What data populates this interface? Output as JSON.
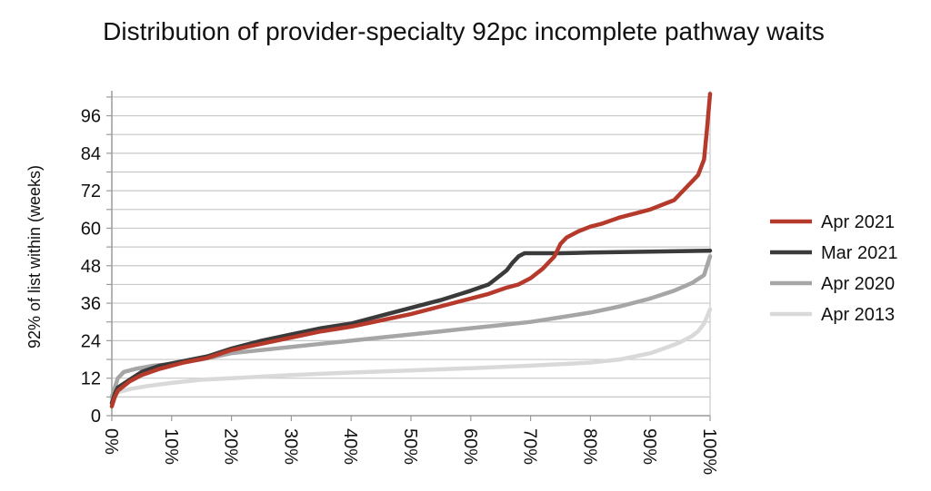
{
  "chart_data": {
    "type": "line",
    "title": "Distribution of provider-specialty 92pc incomplete pathway waits",
    "xlabel": "",
    "ylabel": "92% of list within (weeks)",
    "xlim": [
      0,
      100
    ],
    "ylim": [
      0,
      104
    ],
    "x_ticks": [
      "0%",
      "10%",
      "20%",
      "30%",
      "40%",
      "50%",
      "60%",
      "70%",
      "80%",
      "90%",
      "100%"
    ],
    "y_ticks": [
      0,
      12,
      24,
      36,
      48,
      60,
      72,
      84,
      96
    ],
    "grid": true,
    "legend_position": "right",
    "series": [
      {
        "name": "Apr 2021",
        "color": "#b63a2b",
        "x": [
          0,
          0.5,
          1,
          3,
          5,
          8,
          12,
          16,
          20,
          25,
          30,
          35,
          40,
          45,
          50,
          55,
          60,
          63,
          66,
          68,
          70,
          72,
          74,
          75,
          76,
          78,
          80,
          82,
          85,
          88,
          90,
          92,
          94,
          95,
          96,
          97,
          98,
          99,
          99.5,
          100
        ],
        "y": [
          3,
          6,
          8,
          11,
          13,
          15,
          17,
          18.5,
          21,
          23,
          25,
          27,
          28.5,
          30.5,
          32.5,
          35,
          37.5,
          39,
          41,
          42,
          44,
          47,
          51,
          55,
          57,
          59,
          60.5,
          61.5,
          63.5,
          65,
          66,
          67.5,
          69,
          71,
          73,
          75,
          77,
          82,
          92,
          103
        ]
      },
      {
        "name": "Mar 2021",
        "color": "#3a3a3a",
        "x": [
          0,
          0.5,
          1,
          3,
          5,
          8,
          12,
          16,
          20,
          25,
          30,
          35,
          40,
          45,
          50,
          55,
          60,
          63,
          65,
          66,
          67,
          68,
          69,
          70,
          75,
          80,
          90,
          100
        ],
        "y": [
          4,
          7,
          9,
          11.5,
          14,
          16,
          17.5,
          19,
          21.5,
          24,
          26,
          28,
          29.5,
          32,
          34.5,
          37,
          40,
          42,
          45,
          46.5,
          49,
          51,
          52,
          52,
          52,
          52.2,
          52.5,
          52.8
        ]
      },
      {
        "name": "Apr 2020",
        "color": "#a6a6a6",
        "x": [
          0,
          0.5,
          1,
          2,
          4,
          7,
          10,
          15,
          20,
          25,
          30,
          35,
          40,
          45,
          50,
          55,
          60,
          65,
          70,
          75,
          80,
          85,
          90,
          94,
          97,
          99,
          100
        ],
        "y": [
          6,
          9,
          12,
          14,
          15,
          16,
          16.5,
          18,
          20,
          21,
          22,
          23,
          24,
          25,
          26,
          27,
          28,
          29,
          30,
          31.5,
          33,
          35,
          37.5,
          40,
          42.5,
          45,
          51
        ]
      },
      {
        "name": "Apr 2013",
        "color": "#d9d9d9",
        "x": [
          0,
          0.5,
          1,
          3,
          6,
          10,
          15,
          20,
          30,
          40,
          50,
          60,
          70,
          80,
          85,
          90,
          93,
          95,
          97,
          98,
          99,
          100
        ],
        "y": [
          5,
          7,
          7.5,
          8.5,
          9.5,
          10.5,
          11.5,
          12,
          13,
          13.8,
          14.5,
          15.2,
          16,
          17,
          18,
          20,
          22,
          23.5,
          25.5,
          27,
          29.5,
          34
        ]
      }
    ]
  }
}
